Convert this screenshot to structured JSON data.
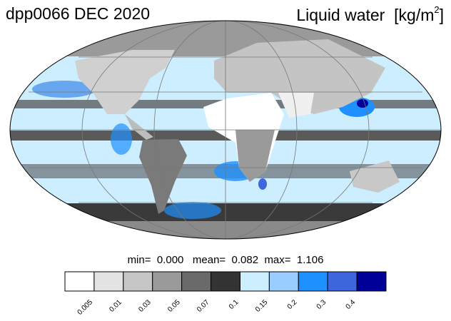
{
  "header": {
    "experiment_date": "dpp0066 DEC 2020",
    "variable_name": "Liquid water",
    "units_prefix": "[kg/m",
    "units_exponent": "2",
    "units_suffix": "]"
  },
  "stats": {
    "min_label": "min=",
    "min_value": "0.000",
    "mean_label": "mean=",
    "mean_value": "0.082",
    "max_label": "max=",
    "max_value": "1.106"
  },
  "colorbar": {
    "colors": [
      "#ffffff",
      "#e3e3e3",
      "#c6c6c6",
      "#9a9a9a",
      "#6a6a6a",
      "#333333",
      "#cceeff",
      "#99ccff",
      "#1e90ff",
      "#3d66dd",
      "#000099"
    ],
    "tick_labels": [
      "0.005",
      "0.01",
      "0.03",
      "0.05",
      "0.07",
      "0.1",
      "0.15",
      "0.2",
      "0.3",
      "0.4"
    ]
  },
  "map": {
    "projection": "Mollweide",
    "ocean_color": "#cceeff",
    "land_color": "#d9d9d9",
    "desert_color": "#ffffff",
    "cloud_band_color": "#4a4a4a",
    "graticule_color": "#777777"
  }
}
